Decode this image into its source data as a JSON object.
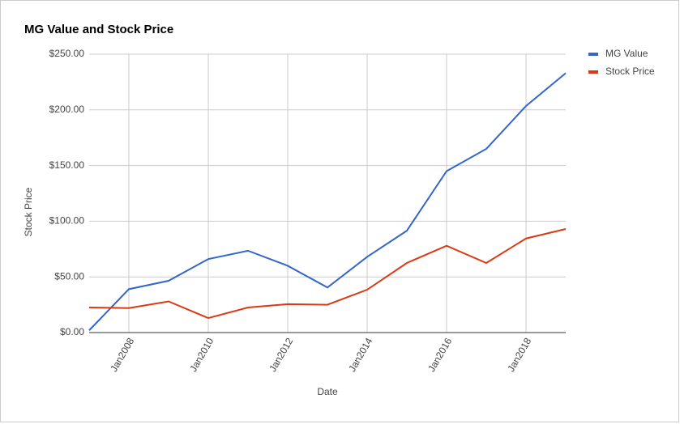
{
  "chart_data": {
    "type": "line",
    "title": "MG Value and Stock Price",
    "x_label": "Date",
    "y_label": "Stock Price",
    "categories": [
      null,
      "Jan2008",
      null,
      "Jan2010",
      null,
      "Jan2012",
      null,
      "Jan2014",
      null,
      "Jan2016",
      null,
      "Jan2018",
      null
    ],
    "series": [
      {
        "name": "MG Value",
        "color": "#3366cc",
        "values": [
          2,
          39,
          46.5,
          66,
          73.5,
          60,
          40.5,
          68,
          91.5,
          145,
          165,
          203.5,
          233
        ]
      },
      {
        "name": "Stock Price",
        "color": "#dc3912",
        "values": [
          22.5,
          22,
          28,
          13,
          22.5,
          25.5,
          25,
          38.5,
          62.5,
          78,
          62.5,
          84.5,
          93
        ]
      }
    ],
    "ylim": [
      0,
      250
    ],
    "yticks": [
      {
        "value": 0,
        "label": "$0.00"
      },
      {
        "value": 50,
        "label": "$50.00"
      },
      {
        "value": 100,
        "label": "$100.00"
      },
      {
        "value": 150,
        "label": "$150.00"
      },
      {
        "value": 200,
        "label": "$200.00"
      },
      {
        "value": 250,
        "label": "$250.00"
      }
    ],
    "grid": true,
    "legend": "right"
  }
}
